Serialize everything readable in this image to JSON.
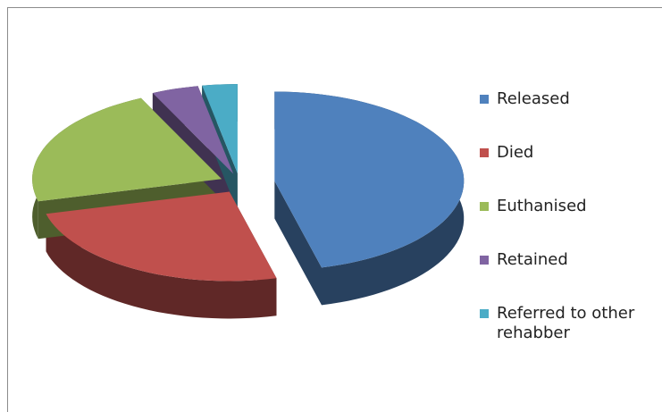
{
  "chart_data": {
    "type": "pie3d",
    "categories": [
      "Released",
      "Died",
      "Euthanised",
      "Retained",
      "Referred to other rehabber"
    ],
    "values": [
      46,
      25,
      22,
      4,
      3
    ],
    "colors": [
      "#4f81bd",
      "#c0504d",
      "#9bbb59",
      "#8064a2",
      "#4bacc6"
    ],
    "legend": "right",
    "exploded": true
  }
}
